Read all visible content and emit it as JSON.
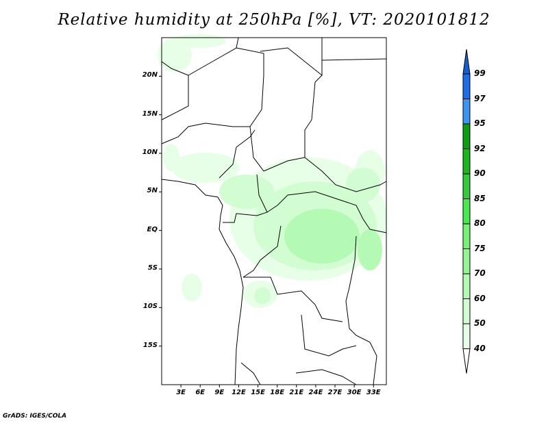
{
  "title": "Relative humidity at 250hPa [%], VT: 2020101812",
  "credit": "GrADS: IGES/COLA",
  "map": {
    "lon_range": [
      0,
      35
    ],
    "lat_range": [
      -20,
      25
    ],
    "lat_labels": [
      "20N",
      "15N",
      "10N",
      "5N",
      "EQ",
      "5S",
      "10S",
      "15S"
    ],
    "lat_values": [
      20,
      15,
      10,
      5,
      0,
      -5,
      -10,
      -15
    ],
    "lon_labels": [
      "3E",
      "6E",
      "9E",
      "12E",
      "15E",
      "18E",
      "21E",
      "24E",
      "27E",
      "30E",
      "33E"
    ],
    "lon_values": [
      3,
      6,
      9,
      12,
      15,
      18,
      21,
      24,
      27,
      30,
      33
    ]
  },
  "colorbar": {
    "levels": [
      "99",
      "97",
      "95",
      "92",
      "90",
      "85",
      "80",
      "75",
      "70",
      "60",
      "50",
      "40"
    ],
    "colors": [
      "#1560d0",
      "#1e6ee8",
      "#3c96f0",
      "#0e9c12",
      "#1eb41e",
      "#36c83c",
      "#4be650",
      "#78f078",
      "#96f496",
      "#b4fab4",
      "#d2fcd2",
      "#e6ffe6",
      "#ffffff"
    ]
  }
}
